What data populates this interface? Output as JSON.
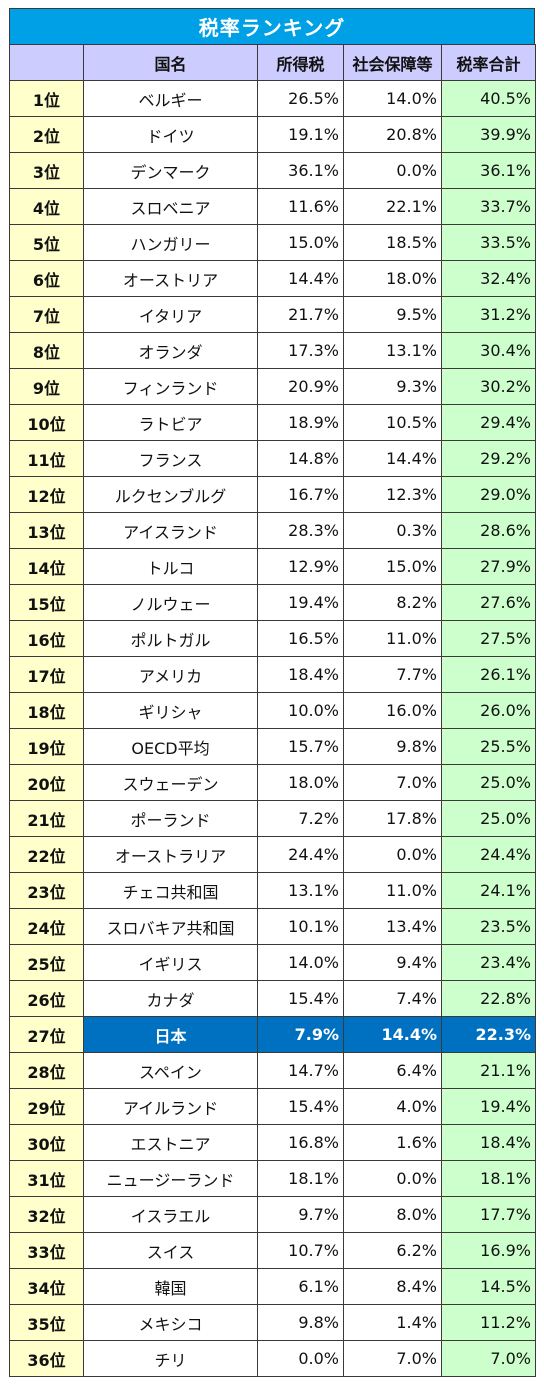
{
  "title": "税率ランキング",
  "headers": {
    "rank": "",
    "country": "国名",
    "income_tax": "所得税",
    "social_security": "社会保障等",
    "total": "税率合計"
  },
  "colors": {
    "title_bg": "#00a0e6",
    "header_bg": "#ccccff",
    "rank_bg": "#ffffcc",
    "total_bg": "#ccffcc",
    "highlight_bg": "#0070c0"
  },
  "highlight_country": "日本",
  "rows": [
    {
      "rank": "1位",
      "country": "ベルギー",
      "income": "26.5%",
      "social": "14.0%",
      "total": "40.5%"
    },
    {
      "rank": "2位",
      "country": "ドイツ",
      "income": "19.1%",
      "social": "20.8%",
      "total": "39.9%"
    },
    {
      "rank": "3位",
      "country": "デンマーク",
      "income": "36.1%",
      "social": "0.0%",
      "total": "36.1%"
    },
    {
      "rank": "4位",
      "country": "スロベニア",
      "income": "11.6%",
      "social": "22.1%",
      "total": "33.7%"
    },
    {
      "rank": "5位",
      "country": "ハンガリー",
      "income": "15.0%",
      "social": "18.5%",
      "total": "33.5%"
    },
    {
      "rank": "6位",
      "country": "オーストリア",
      "income": "14.4%",
      "social": "18.0%",
      "total": "32.4%"
    },
    {
      "rank": "7位",
      "country": "イタリア",
      "income": "21.7%",
      "social": "9.5%",
      "total": "31.2%"
    },
    {
      "rank": "8位",
      "country": "オランダ",
      "income": "17.3%",
      "social": "13.1%",
      "total": "30.4%"
    },
    {
      "rank": "9位",
      "country": "フィンランド",
      "income": "20.9%",
      "social": "9.3%",
      "total": "30.2%"
    },
    {
      "rank": "10位",
      "country": "ラトビア",
      "income": "18.9%",
      "social": "10.5%",
      "total": "29.4%"
    },
    {
      "rank": "11位",
      "country": "フランス",
      "income": "14.8%",
      "social": "14.4%",
      "total": "29.2%"
    },
    {
      "rank": "12位",
      "country": "ルクセンブルグ",
      "income": "16.7%",
      "social": "12.3%",
      "total": "29.0%"
    },
    {
      "rank": "13位",
      "country": "アイスランド",
      "income": "28.3%",
      "social": "0.3%",
      "total": "28.6%"
    },
    {
      "rank": "14位",
      "country": "トルコ",
      "income": "12.9%",
      "social": "15.0%",
      "total": "27.9%"
    },
    {
      "rank": "15位",
      "country": "ノルウェー",
      "income": "19.4%",
      "social": "8.2%",
      "total": "27.6%"
    },
    {
      "rank": "16位",
      "country": "ポルトガル",
      "income": "16.5%",
      "social": "11.0%",
      "total": "27.5%"
    },
    {
      "rank": "17位",
      "country": "アメリカ",
      "income": "18.4%",
      "social": "7.7%",
      "total": "26.1%"
    },
    {
      "rank": "18位",
      "country": "ギリシャ",
      "income": "10.0%",
      "social": "16.0%",
      "total": "26.0%"
    },
    {
      "rank": "19位",
      "country": "OECD平均",
      "income": "15.7%",
      "social": "9.8%",
      "total": "25.5%"
    },
    {
      "rank": "20位",
      "country": "スウェーデン",
      "income": "18.0%",
      "social": "7.0%",
      "total": "25.0%"
    },
    {
      "rank": "21位",
      "country": "ポーランド",
      "income": "7.2%",
      "social": "17.8%",
      "total": "25.0%"
    },
    {
      "rank": "22位",
      "country": "オーストラリア",
      "income": "24.4%",
      "social": "0.0%",
      "total": "24.4%"
    },
    {
      "rank": "23位",
      "country": "チェコ共和国",
      "income": "13.1%",
      "social": "11.0%",
      "total": "24.1%"
    },
    {
      "rank": "24位",
      "country": "スロバキア共和国",
      "income": "10.1%",
      "social": "13.4%",
      "total": "23.5%"
    },
    {
      "rank": "25位",
      "country": "イギリス",
      "income": "14.0%",
      "social": "9.4%",
      "total": "23.4%"
    },
    {
      "rank": "26位",
      "country": "カナダ",
      "income": "15.4%",
      "social": "7.4%",
      "total": "22.8%"
    },
    {
      "rank": "27位",
      "country": "日本",
      "income": "7.9%",
      "social": "14.4%",
      "total": "22.3%"
    },
    {
      "rank": "28位",
      "country": "スペイン",
      "income": "14.7%",
      "social": "6.4%",
      "total": "21.1%"
    },
    {
      "rank": "29位",
      "country": "アイルランド",
      "income": "15.4%",
      "social": "4.0%",
      "total": "19.4%"
    },
    {
      "rank": "30位",
      "country": "エストニア",
      "income": "16.8%",
      "social": "1.6%",
      "total": "18.4%"
    },
    {
      "rank": "31位",
      "country": "ニュージーランド",
      "income": "18.1%",
      "social": "0.0%",
      "total": "18.1%"
    },
    {
      "rank": "32位",
      "country": "イスラエル",
      "income": "9.7%",
      "social": "8.0%",
      "total": "17.7%"
    },
    {
      "rank": "33位",
      "country": "スイス",
      "income": "10.7%",
      "social": "6.2%",
      "total": "16.9%"
    },
    {
      "rank": "34位",
      "country": "韓国",
      "income": "6.1%",
      "social": "8.4%",
      "total": "14.5%"
    },
    {
      "rank": "35位",
      "country": "メキシコ",
      "income": "9.8%",
      "social": "1.4%",
      "total": "11.2%"
    },
    {
      "rank": "36位",
      "country": "チリ",
      "income": "0.0%",
      "social": "7.0%",
      "total": "7.0%"
    }
  ]
}
